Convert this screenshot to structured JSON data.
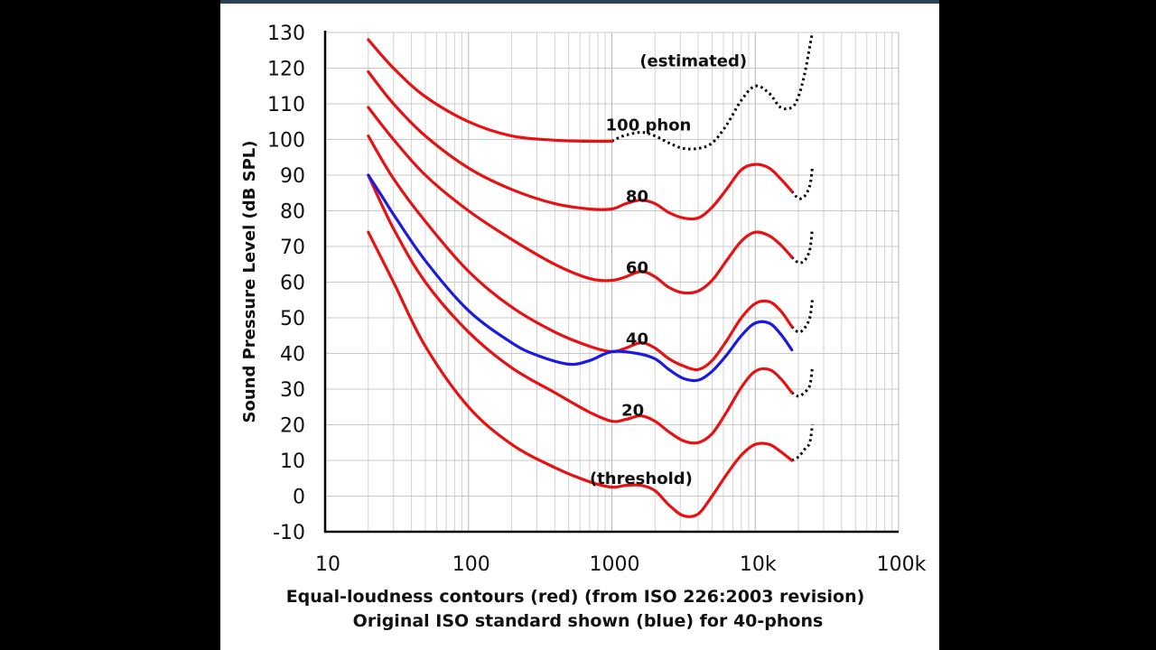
{
  "chart_data": {
    "type": "line",
    "title": "",
    "xlabel_line1": "Equal-loudness contours (red) (from ISO 226:2003 revision)",
    "xlabel_line2": "Original ISO standard shown (blue) for 40-phons",
    "ylabel": "Sound Pressure Level (dB SPL)",
    "xscale": "log",
    "xlim": [
      10,
      100000
    ],
    "ylim": [
      -10,
      130
    ],
    "grid": true,
    "x_ticks": [
      "10",
      "100",
      "1000",
      "10k",
      "100k"
    ],
    "y_ticks": [
      "130",
      "120",
      "110",
      "100",
      "90",
      "80",
      "70",
      "60",
      "50",
      "40",
      "30",
      "20",
      "10",
      "0",
      "-10"
    ],
    "colors": {
      "iso2003": "#e81010",
      "original": "#1a1ae6",
      "estimated": "#000000"
    },
    "annotations": [
      {
        "text": "(estimated)",
        "x": 3700,
        "y": 122
      },
      {
        "text": "100 phon",
        "x": 1800,
        "y": 104
      },
      {
        "text": "80",
        "x": 1500,
        "y": 84
      },
      {
        "text": "60",
        "x": 1500,
        "y": 64
      },
      {
        "text": "40",
        "x": 1500,
        "y": 44
      },
      {
        "text": "20",
        "x": 1400,
        "y": 24
      },
      {
        "text": "(threshold)",
        "x": 1600,
        "y": 5
      }
    ],
    "series": [
      {
        "name": "100 phon",
        "color": "red",
        "x": [
          20,
          30,
          50,
          100,
          200,
          400,
          700,
          1000
        ],
        "y": [
          128,
          120,
          112,
          105,
          101,
          99.8,
          99.5,
          99.5
        ]
      },
      {
        "name": "100 phon (estimated)",
        "color": "dotted",
        "x": [
          1000,
          1200,
          1600,
          2000,
          2500,
          3150,
          4000,
          5000,
          6300,
          8000,
          10000,
          12500,
          15000,
          18000,
          20000,
          22000,
          24000,
          25000
        ],
        "y": [
          99.5,
          101,
          102,
          101,
          99,
          97.5,
          97.5,
          99,
          104,
          111,
          115,
          113,
          109,
          109,
          112,
          118,
          126,
          130
        ]
      },
      {
        "name": "80 phon",
        "color": "red",
        "x": [
          20,
          30,
          50,
          100,
          200,
          400,
          700,
          1000,
          1250,
          1600,
          2000,
          2500,
          3150,
          4000,
          5000,
          6300,
          8000,
          10000,
          12500,
          15000,
          18000
        ],
        "y": [
          119,
          110,
          101,
          92,
          86,
          82,
          80.5,
          80.5,
          82,
          83,
          82,
          79.5,
          78,
          78,
          81,
          86,
          91.5,
          93,
          92,
          89,
          85.5
        ]
      },
      {
        "name": "80 phon (estimated)",
        "color": "dotted",
        "x": [
          18000,
          20000,
          22000,
          24000,
          25000
        ],
        "y": [
          85.5,
          83.5,
          84,
          87,
          92
        ]
      },
      {
        "name": "60 phon",
        "color": "red",
        "x": [
          20,
          30,
          50,
          100,
          200,
          400,
          700,
          1000,
          1250,
          1600,
          2000,
          2500,
          3150,
          4000,
          5000,
          6300,
          8000,
          10000,
          12500,
          15000,
          18000
        ],
        "y": [
          109,
          100,
          90,
          80,
          72,
          65,
          61,
          60.5,
          61.5,
          63,
          61.5,
          58.5,
          57,
          57.5,
          60.5,
          66,
          71.5,
          74,
          73,
          70.5,
          67
        ]
      },
      {
        "name": "60 phon (estimated)",
        "color": "dotted",
        "x": [
          18000,
          20000,
          22000,
          24000,
          25000
        ],
        "y": [
          67,
          65.5,
          66,
          69,
          75
        ]
      },
      {
        "name": "40 phon",
        "color": "red",
        "x": [
          20,
          30,
          50,
          100,
          200,
          400,
          700,
          1000,
          1250,
          1600,
          2000,
          2500,
          3150,
          4000,
          5000,
          6300,
          8000,
          10000,
          12500,
          15000,
          18000
        ],
        "y": [
          101,
          89,
          77,
          63,
          53,
          46,
          42,
          40.5,
          41.5,
          43,
          41.5,
          38.5,
          36.5,
          35.5,
          38,
          43.5,
          50,
          54,
          54.5,
          52,
          47.5
        ]
      },
      {
        "name": "40 phon (estimated)",
        "color": "dotted",
        "x": [
          18000,
          20000,
          22000,
          24000,
          25000
        ],
        "y": [
          47.5,
          46,
          47,
          50,
          55
        ]
      },
      {
        "name": "20 phon",
        "color": "red",
        "x": [
          20,
          30,
          50,
          100,
          200,
          400,
          700,
          1000,
          1250,
          1600,
          2000,
          2500,
          3150,
          4000,
          5000,
          6300,
          8000,
          10000,
          12500,
          15000,
          18000
        ],
        "y": [
          90,
          75,
          60,
          46,
          36,
          29,
          23.5,
          21,
          21.5,
          22.5,
          21,
          18,
          15.5,
          15,
          17.5,
          23.5,
          30.5,
          35,
          35.5,
          33,
          29
        ]
      },
      {
        "name": "20 phon (estimated)",
        "color": "dotted",
        "x": [
          18000,
          20000,
          22000,
          24000,
          25000
        ],
        "y": [
          29,
          28,
          29,
          31,
          36
        ]
      },
      {
        "name": "threshold",
        "color": "red",
        "x": [
          20,
          30,
          50,
          100,
          200,
          400,
          700,
          1000,
          1250,
          1600,
          2000,
          2500,
          3150,
          4000,
          5000,
          6300,
          8000,
          10000,
          12500,
          15000,
          18000
        ],
        "y": [
          74,
          60,
          42,
          25,
          14.5,
          8,
          4,
          2.5,
          3,
          3,
          1.5,
          -2.5,
          -5.5,
          -5,
          0,
          6,
          11.5,
          14.5,
          14.5,
          12.5,
          10
        ]
      },
      {
        "name": "threshold (estimated)",
        "color": "dotted",
        "x": [
          18000,
          20000,
          22000,
          24000,
          25000
        ],
        "y": [
          10,
          11,
          13,
          15,
          20
        ]
      },
      {
        "name": "Original ISO 40 phon",
        "color": "blue",
        "x": [
          20,
          25,
          30,
          50,
          100,
          200,
          300,
          500,
          700,
          1000,
          1500,
          2000,
          2500,
          3150,
          4000,
          5000,
          6300,
          8000,
          10000,
          12500,
          15000,
          18000
        ],
        "y": [
          90,
          84,
          79,
          66,
          52,
          43,
          39.5,
          37,
          38,
          40.5,
          40,
          38.5,
          35.5,
          33,
          32.5,
          35,
          39.5,
          45,
          48.5,
          48.5,
          45.5,
          41
        ]
      }
    ]
  }
}
